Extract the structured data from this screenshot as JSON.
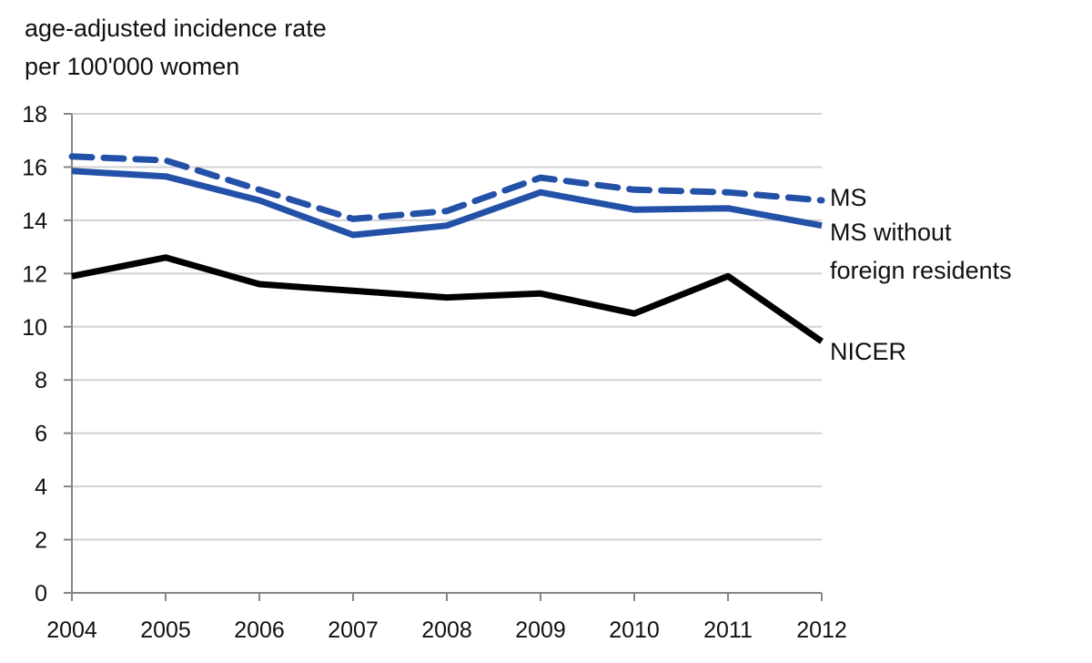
{
  "chart_data": {
    "type": "line",
    "title": "",
    "ylabel_lines": [
      "age-adjusted incidence rate",
      "per 100'000  women"
    ],
    "xlabel": "",
    "x": [
      2004,
      2005,
      2006,
      2007,
      2008,
      2009,
      2010,
      2011,
      2012
    ],
    "x_tick_labels": [
      "2004",
      "2005",
      "2006",
      "2007",
      "2008",
      "2009",
      "2010",
      "2011",
      "2012"
    ],
    "ylim": [
      0,
      18
    ],
    "y_ticks": [
      0,
      2,
      4,
      6,
      8,
      10,
      12,
      14,
      16,
      18
    ],
    "y_tick_labels": [
      "0",
      "2",
      "4",
      "6",
      "8",
      "10",
      "12",
      "14",
      "16",
      "18"
    ],
    "grid": "horizontal",
    "legend": "inline-right-end-labels",
    "series": [
      {
        "name": "MS",
        "label_lines": [
          "MS"
        ],
        "style": "dashed",
        "color": "#2451a8",
        "values": [
          16.4,
          16.25,
          15.15,
          14.05,
          14.35,
          15.6,
          15.15,
          15.05,
          14.75
        ]
      },
      {
        "name": "MS without foreign residents",
        "label_lines": [
          "MS without",
          "foreign residents"
        ],
        "style": "solid",
        "color": "#2451a8",
        "values": [
          15.85,
          15.65,
          14.75,
          13.45,
          13.8,
          15.05,
          14.4,
          14.45,
          13.8
        ]
      },
      {
        "name": "NICER",
        "label_lines": [
          "NICER"
        ],
        "style": "solid",
        "color": "#000000",
        "values": [
          11.9,
          12.6,
          11.6,
          11.35,
          11.1,
          11.25,
          10.5,
          11.9,
          9.45
        ]
      }
    ]
  }
}
